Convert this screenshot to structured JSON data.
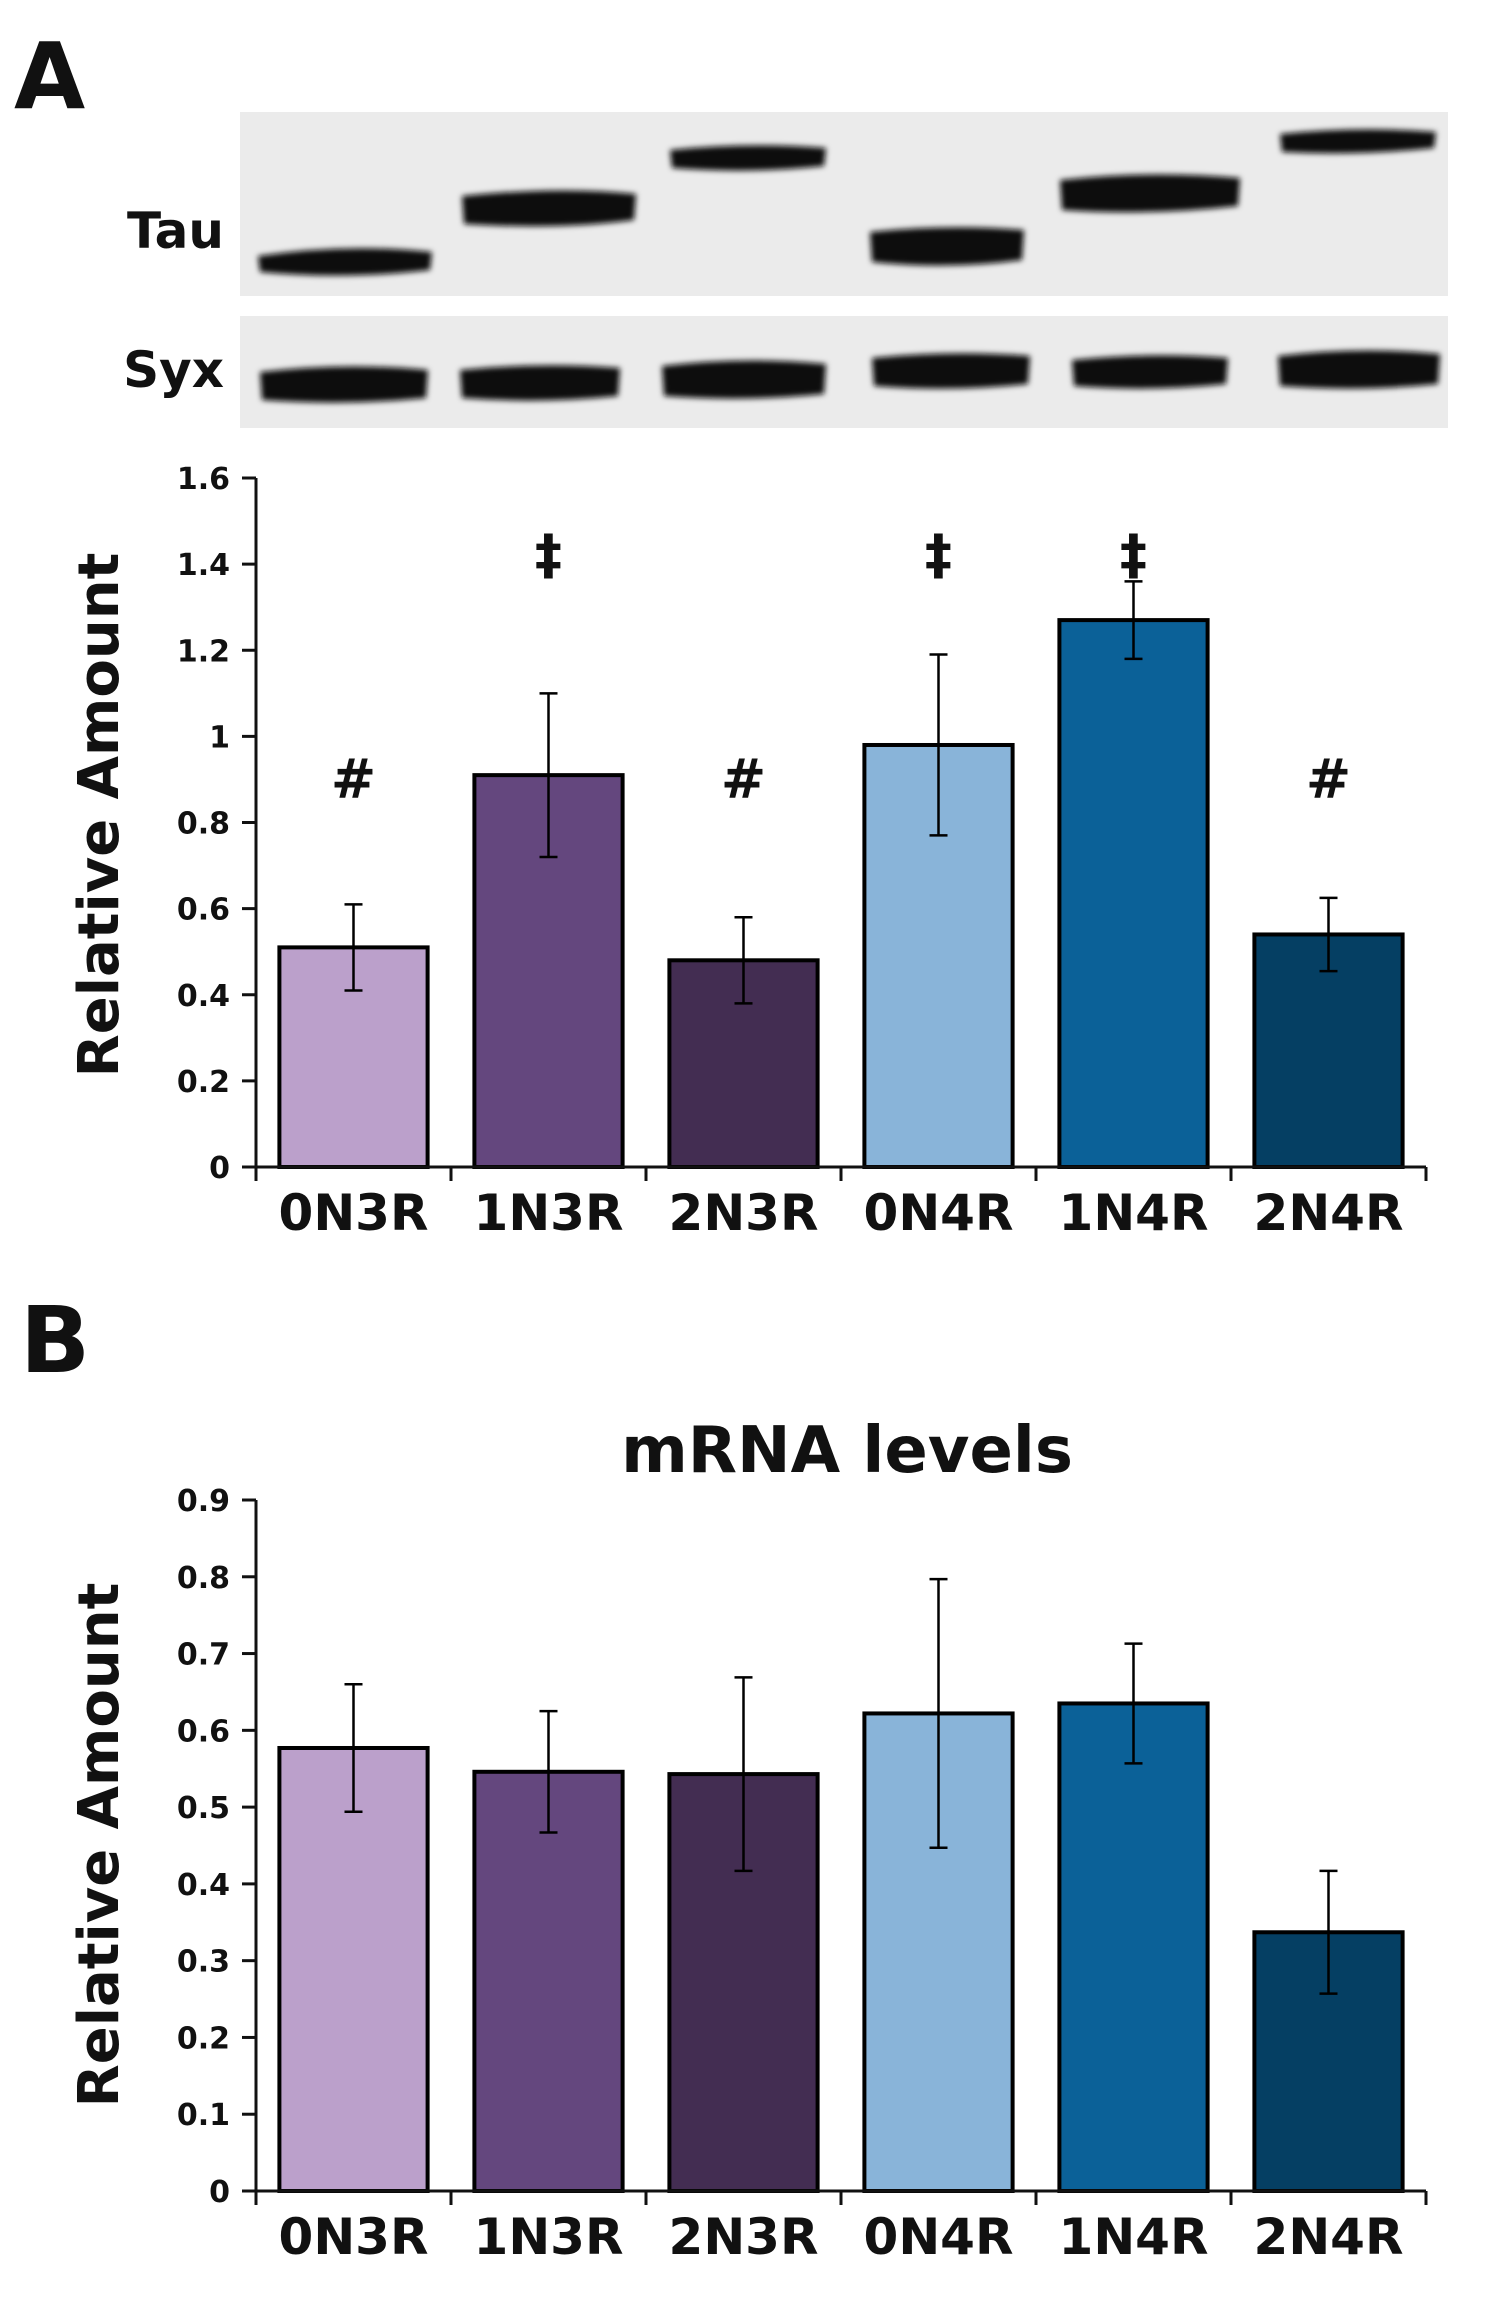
{
  "panels": {
    "a_letter": "A",
    "b_letter": "B"
  },
  "blot": {
    "tau_label": "Tau",
    "syx_label": "Syx"
  },
  "chart_data": [
    {
      "type": "bar",
      "panel": "A",
      "title": "",
      "ylabel": "Relative Amount",
      "xlabel": "",
      "ylim": [
        0,
        1.6
      ],
      "yticks": [
        "0",
        "0.2",
        "0.4",
        "0.6",
        "0.8",
        "1",
        "1.2",
        "1.4",
        "1.6"
      ],
      "categories": [
        "0N3R",
        "1N3R",
        "2N3R",
        "0N4R",
        "1N4R",
        "2N4R"
      ],
      "values": [
        0.51,
        0.91,
        0.48,
        0.98,
        1.27,
        0.54
      ],
      "errors": [
        0.1,
        0.19,
        0.1,
        0.21,
        0.09,
        0.085
      ],
      "annotations": [
        "#",
        "‡",
        "#",
        "‡",
        "‡",
        "#"
      ],
      "annotation_values": [
        0.9,
        1.42,
        0.9,
        1.42,
        1.42,
        0.9
      ],
      "colors": [
        "#bba0cb",
        "#64477e",
        "#432d52",
        "#89b4d9",
        "#0b6198",
        "#053f63"
      ]
    },
    {
      "type": "bar",
      "panel": "B",
      "title": "mRNA levels",
      "ylabel": "Relative Amount",
      "xlabel": "",
      "ylim": [
        0,
        0.9
      ],
      "yticks": [
        "0",
        "0.1",
        "0.2",
        "0.3",
        "0.4",
        "0.5",
        "0.6",
        "0.7",
        "0.8",
        "0.9"
      ],
      "categories": [
        "0N3R",
        "1N3R",
        "2N3R",
        "0N4R",
        "1N4R",
        "2N4R"
      ],
      "values": [
        0.577,
        0.546,
        0.543,
        0.622,
        0.635,
        0.337
      ],
      "errors": [
        0.083,
        0.079,
        0.126,
        0.175,
        0.078,
        0.08
      ],
      "annotations": [],
      "annotation_values": [],
      "colors": [
        "#bba0cb",
        "#64477e",
        "#432d52",
        "#89b4d9",
        "#0b6198",
        "#053f63"
      ]
    }
  ]
}
